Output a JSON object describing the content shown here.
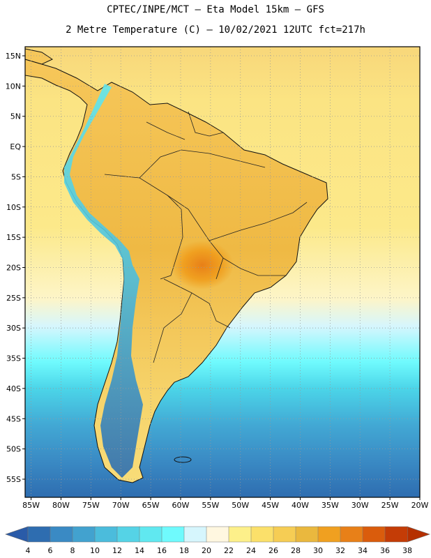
{
  "header": {
    "line1": "CPTEC/INPE/MCT –  Eta Model 15km – GFS",
    "line2": "2 Metre Temperature (C) – 10/02/2021 12UTC fct=217h"
  },
  "map": {
    "lat_range": [
      -58,
      16.5
    ],
    "lon_range": [
      -86,
      -20
    ],
    "lat_ticks": [
      {
        "value": 15,
        "label": "15N"
      },
      {
        "value": 10,
        "label": "10N"
      },
      {
        "value": 5,
        "label": "5N"
      },
      {
        "value": 0,
        "label": "EQ"
      },
      {
        "value": -5,
        "label": "5S"
      },
      {
        "value": -10,
        "label": "10S"
      },
      {
        "value": -15,
        "label": "15S"
      },
      {
        "value": -20,
        "label": "20S"
      },
      {
        "value": -25,
        "label": "25S"
      },
      {
        "value": -30,
        "label": "30S"
      },
      {
        "value": -35,
        "label": "35S"
      },
      {
        "value": -40,
        "label": "40S"
      },
      {
        "value": -45,
        "label": "45S"
      },
      {
        "value": -50,
        "label": "50S"
      },
      {
        "value": -55,
        "label": "55S"
      }
    ],
    "lon_ticks": [
      {
        "value": -85,
        "label": "85W"
      },
      {
        "value": -80,
        "label": "80W"
      },
      {
        "value": -75,
        "label": "75W"
      },
      {
        "value": -70,
        "label": "70W"
      },
      {
        "value": -65,
        "label": "65W"
      },
      {
        "value": -60,
        "label": "60W"
      },
      {
        "value": -55,
        "label": "55W"
      },
      {
        "value": -50,
        "label": "50W"
      },
      {
        "value": -45,
        "label": "45W"
      },
      {
        "value": -40,
        "label": "40W"
      },
      {
        "value": -35,
        "label": "35W"
      },
      {
        "value": -30,
        "label": "30W"
      },
      {
        "value": -25,
        "label": "25W"
      },
      {
        "value": -20,
        "label": "20W"
      }
    ],
    "grid": "dotted"
  },
  "colorbar": {
    "labels": [
      "4",
      "6",
      "8",
      "10",
      "12",
      "14",
      "16",
      "18",
      "20",
      "22",
      "24",
      "26",
      "28",
      "30",
      "32",
      "34",
      "36",
      "38"
    ],
    "colors": [
      "#2e6db0",
      "#3a8ac4",
      "#42a2cf",
      "#4bbcdc",
      "#55d3e6",
      "#60e8f0",
      "#6ffafd",
      "#d6f6fd",
      "#fff7e0",
      "#fdf08a",
      "#fbe06a",
      "#f6cd54",
      "#eab83e",
      "#f0a020",
      "#e88018",
      "#da5c0c",
      "#c43c06"
    ],
    "low_color": "#2a5ba8",
    "high_color": "#b53000"
  }
}
